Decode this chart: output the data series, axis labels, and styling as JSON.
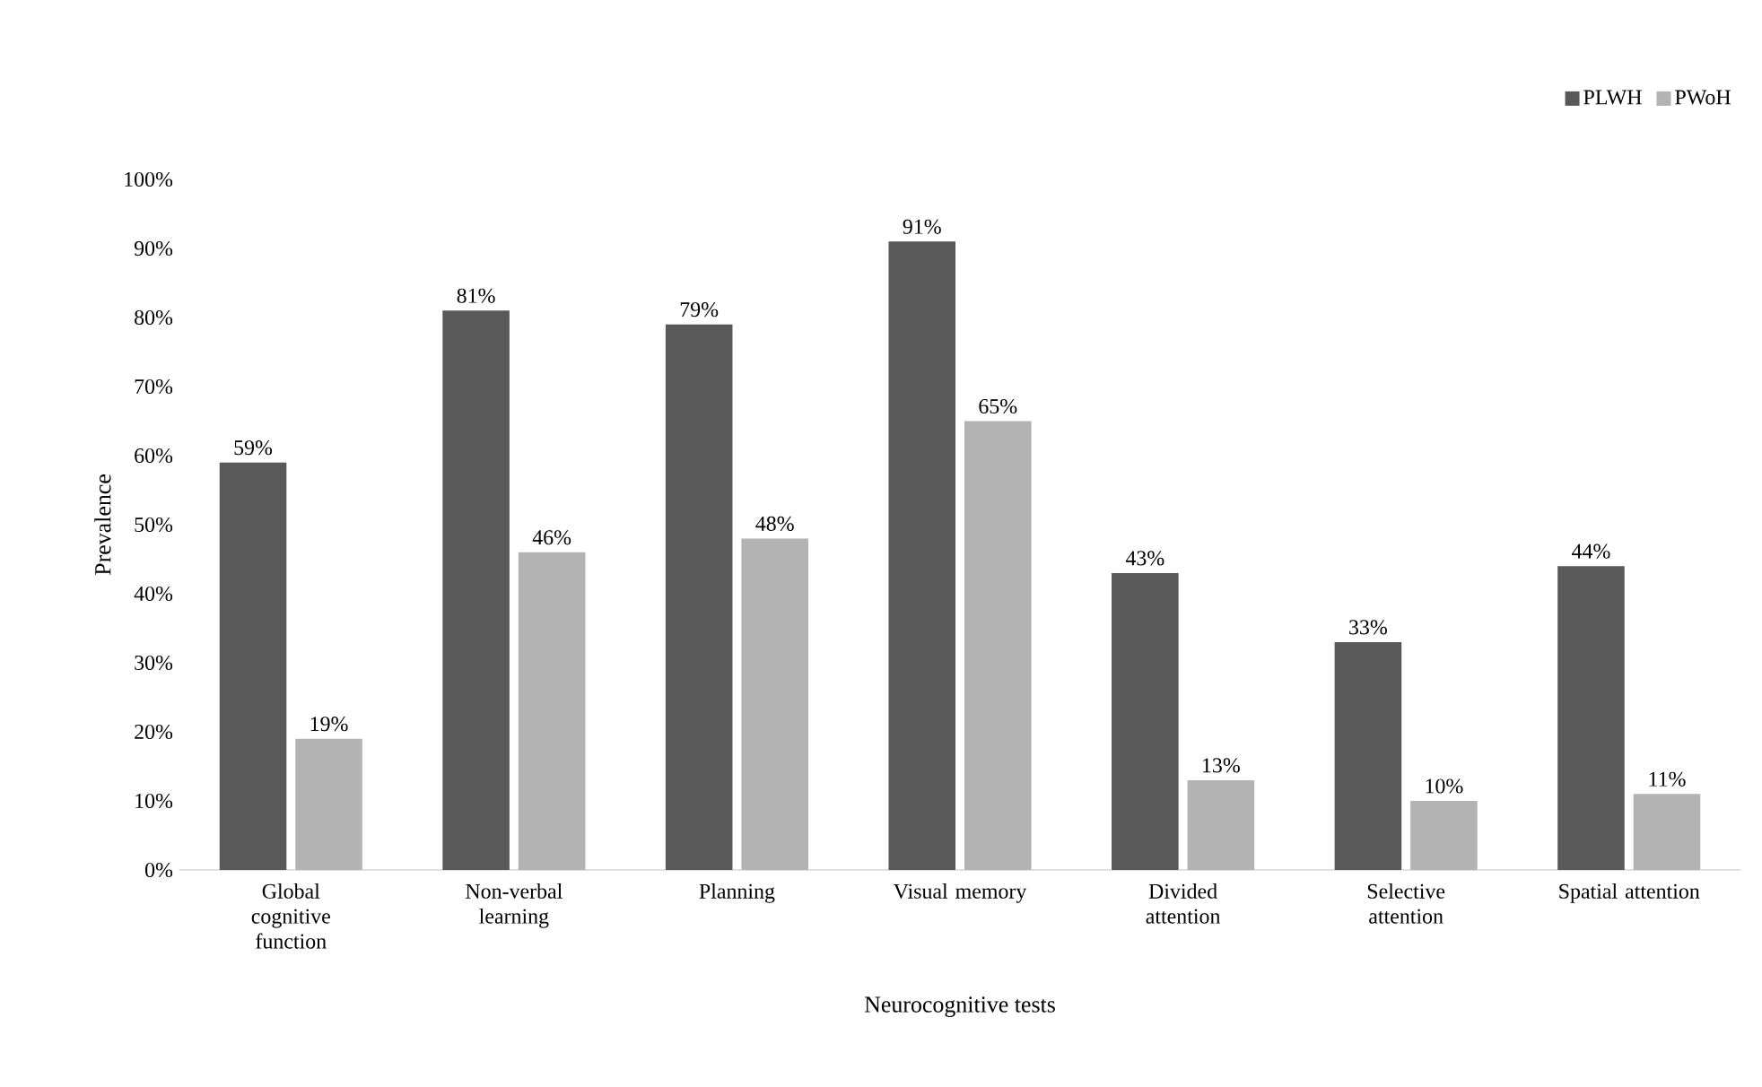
{
  "chart_data": {
    "type": "bar",
    "xlabel": "Neurocognitive tests",
    "ylabel": "Prevalence",
    "categories": [
      "Global cognitive function",
      "Non-verbal learning",
      "Planning",
      "Visual memory",
      "Divided attention",
      "Selective attention",
      "Spatial attention"
    ],
    "series": [
      {
        "name": "PLWH",
        "color": "#595959",
        "values": [
          59,
          81,
          79,
          91,
          43,
          33,
          44
        ],
        "value_labels": [
          "59%",
          "81%",
          "79%",
          "91%",
          "43%",
          "33%",
          "44%"
        ]
      },
      {
        "name": "PWoH",
        "color": "#b3b3b3",
        "values": [
          19,
          46,
          48,
          65,
          13,
          10,
          11
        ],
        "value_labels": [
          "19%",
          "46%",
          "48%",
          "65%",
          "13%",
          "10%",
          "11%"
        ]
      }
    ],
    "ylim": [
      0,
      100
    ],
    "yticks": [
      {
        "value": 0,
        "label": "0%"
      },
      {
        "value": 10,
        "label": "10%"
      },
      {
        "value": 20,
        "label": "20%"
      },
      {
        "value": 30,
        "label": "30%"
      },
      {
        "value": 40,
        "label": "40%"
      },
      {
        "value": 50,
        "label": "50%"
      },
      {
        "value": 60,
        "label": "60%"
      },
      {
        "value": 70,
        "label": "70%"
      },
      {
        "value": 80,
        "label": "80%"
      },
      {
        "value": 90,
        "label": "90%"
      },
      {
        "value": 100,
        "label": "100%"
      }
    ],
    "legend": "top right"
  }
}
